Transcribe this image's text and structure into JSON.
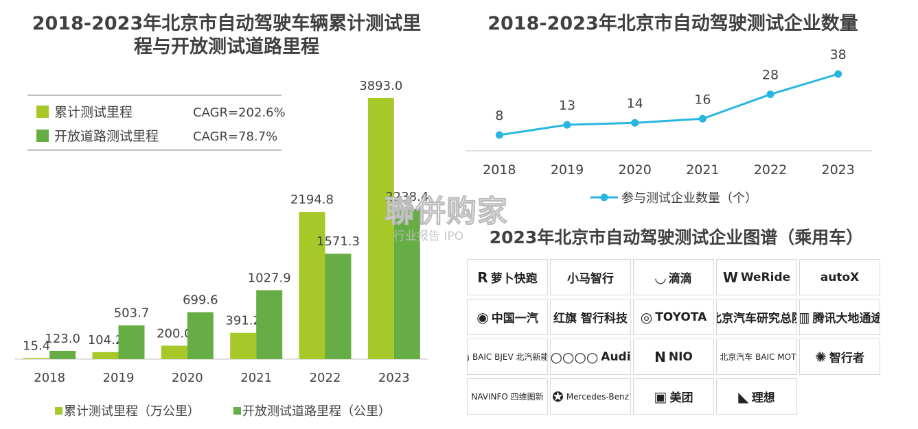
{
  "left_title": "2018-2023年北京市自动驾驶车辆累计测试里程与开放测试道路里程",
  "right_title": "2018-2023年北京市自动驾驶测试企业数量",
  "logo_title": "2023年北京市自动驾驶测试企业图谱（乘用车）",
  "watermark": "聯併购家",
  "watermark_sub": "行业报告 IPO",
  "colors": {
    "light_green": "#a6c828",
    "dark_green": "#67ad45",
    "line_blue": "#27b5e2",
    "text": "#404040"
  },
  "chart_data": [
    {
      "type": "bar",
      "categories": [
        "2018",
        "2019",
        "2020",
        "2021",
        "2022",
        "2023"
      ],
      "series": [
        {
          "name": "累计测试里程（万公里）",
          "values": [
            15.4,
            104.2,
            200.0,
            391.2,
            2194.8,
            3893.0
          ],
          "color": "#a6c828"
        },
        {
          "name": "开放测试道路里程（公里）",
          "values": [
            123.0,
            503.7,
            699.6,
            1027.9,
            1571.3,
            2238.4
          ],
          "color": "#67ad45"
        }
      ],
      "ylim": [
        0,
        4000
      ],
      "legend_box": [
        {
          "label": "累计测试里程",
          "cagr": "CAGR=202.6%",
          "color": "#a6c828"
        },
        {
          "label": "开放道路测试里程",
          "cagr": "CAGR=78.7%",
          "color": "#67ad45"
        }
      ],
      "legend_position": "bottom"
    },
    {
      "type": "line",
      "categories": [
        "2018",
        "2019",
        "2020",
        "2021",
        "2022",
        "2023"
      ],
      "series": [
        {
          "name": "参与测试企业数量（个）",
          "values": [
            8,
            13,
            14,
            16,
            28,
            38
          ],
          "color": "#27b5e2"
        }
      ],
      "ylim": [
        0,
        40
      ],
      "legend_position": "bottom"
    }
  ],
  "logos": [
    {
      "label": "萝卜快跑",
      "mark": "R"
    },
    {
      "label": "小马智行",
      "mark": ""
    },
    {
      "label": "滴滴",
      "mark": "◡"
    },
    {
      "label": "WeRide",
      "mark": "W"
    },
    {
      "label": "autoX",
      "mark": ""
    },
    {
      "label": "中国一汽",
      "mark": "◉"
    },
    {
      "label": "红旗 智行科技",
      "mark": ""
    },
    {
      "label": "TOYOTA",
      "mark": "◎"
    },
    {
      "label": "北京汽车研究总院",
      "mark": ""
    },
    {
      "label": "腾讯大地通途",
      "mark": "▥"
    },
    {
      "label": "BAIC BJEV 北汽新能源",
      "mark": "◎"
    },
    {
      "label": "Audi",
      "mark": "○○○○"
    },
    {
      "label": "NIO",
      "mark": "N"
    },
    {
      "label": "北京汽车 BAIC MOTOR",
      "mark": "◎"
    },
    {
      "label": "智行者",
      "mark": "✺"
    },
    {
      "label": "NAVINFO 四维图新",
      "mark": ""
    },
    {
      "label": "Mercedes-Benz",
      "mark": "✪"
    },
    {
      "label": "美团",
      "mark": "▣"
    },
    {
      "label": "理想",
      "mark": "◣"
    },
    {
      "label": "",
      "mark": ""
    }
  ]
}
